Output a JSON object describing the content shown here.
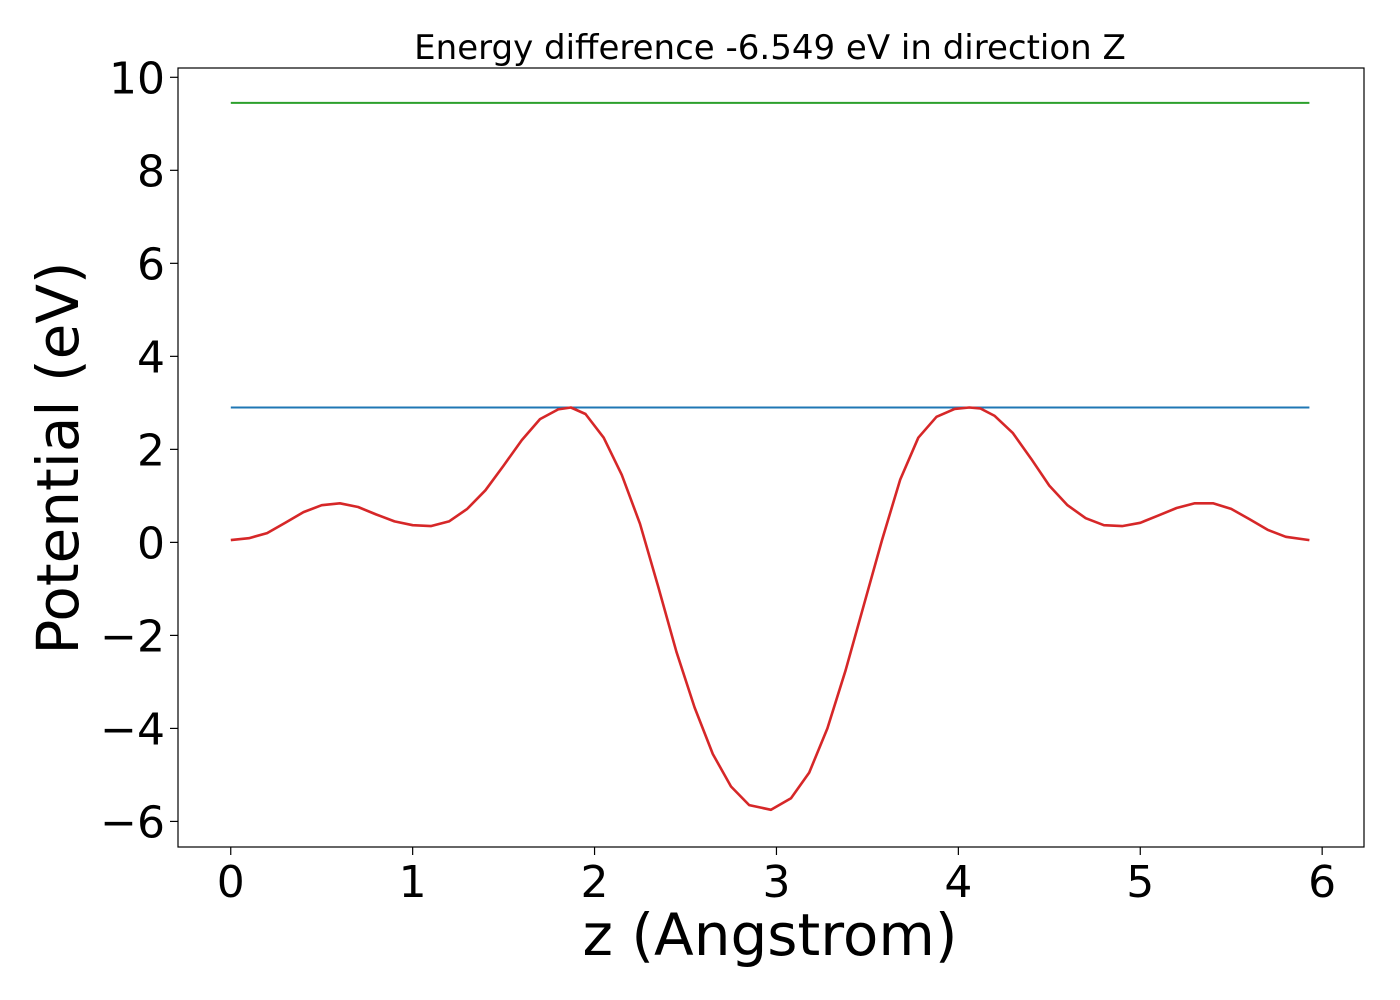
{
  "chart_data": {
    "type": "line",
    "title": "Energy difference -6.549 eV in direction Z",
    "xlabel": "z (Angstrom)",
    "ylabel": "Potential (eV)",
    "xlim": [
      -0.29,
      6.23
    ],
    "ylim": [
      -6.55,
      10.2
    ],
    "xticks": [
      0,
      1,
      2,
      3,
      4,
      5,
      6
    ],
    "yticks": [
      -6,
      -4,
      -2,
      0,
      2,
      4,
      6,
      8,
      10
    ],
    "xtick_labels": [
      "0",
      "1",
      "2",
      "3",
      "4",
      "5",
      "6"
    ],
    "ytick_labels": [
      "−6",
      "−4",
      "−2",
      "0",
      "2",
      "4",
      "6",
      "8",
      "10"
    ],
    "grid": false,
    "series": [
      {
        "color": "#2ca02c",
        "x": [
          0,
          5.93
        ],
        "y": [
          9.45,
          9.45
        ]
      },
      {
        "color": "#1f77b4",
        "x": [
          0,
          5.93
        ],
        "y": [
          2.9,
          2.9
        ]
      },
      {
        "color": "#d62728",
        "x": [
          0,
          0.1,
          0.2,
          0.3,
          0.4,
          0.5,
          0.6,
          0.7,
          0.8,
          0.9,
          1.0,
          1.1,
          1.2,
          1.3,
          1.4,
          1.5,
          1.6,
          1.7,
          1.8,
          1.87,
          1.95,
          2.05,
          2.15,
          2.25,
          2.35,
          2.45,
          2.55,
          2.65,
          2.75,
          2.85,
          2.97,
          3.08,
          3.18,
          3.28,
          3.38,
          3.48,
          3.58,
          3.68,
          3.78,
          3.88,
          3.98,
          4.06,
          4.12,
          4.2,
          4.3,
          4.4,
          4.5,
          4.6,
          4.7,
          4.8,
          4.9,
          5.0,
          5.1,
          5.2,
          5.3,
          5.4,
          5.5,
          5.6,
          5.7,
          5.8,
          5.93
        ],
        "y": [
          0.05,
          0.09,
          0.2,
          0.42,
          0.65,
          0.8,
          0.84,
          0.76,
          0.6,
          0.45,
          0.37,
          0.35,
          0.45,
          0.72,
          1.12,
          1.65,
          2.2,
          2.65,
          2.86,
          2.9,
          2.76,
          2.25,
          1.45,
          0.4,
          -0.95,
          -2.35,
          -3.55,
          -4.55,
          -5.25,
          -5.65,
          -5.75,
          -5.5,
          -4.95,
          -4.0,
          -2.75,
          -1.35,
          0.05,
          1.35,
          2.25,
          2.7,
          2.87,
          2.9,
          2.88,
          2.72,
          2.35,
          1.8,
          1.22,
          0.8,
          0.52,
          0.37,
          0.35,
          0.42,
          0.58,
          0.74,
          0.84,
          0.84,
          0.72,
          0.5,
          0.27,
          0.12,
          0.05
        ]
      }
    ]
  }
}
